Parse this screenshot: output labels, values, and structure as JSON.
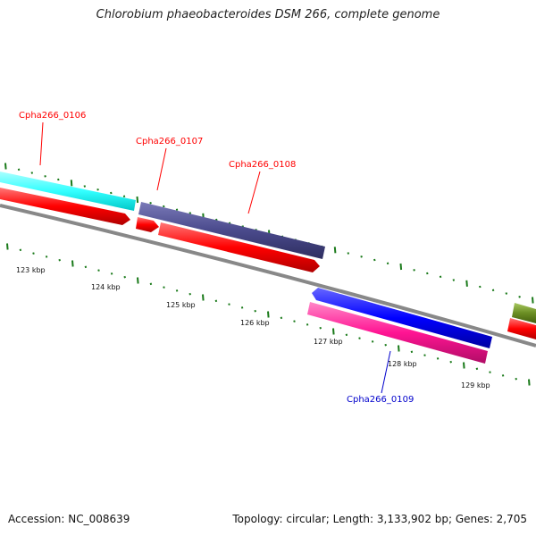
{
  "title": "Chlorobium phaeobacteroides DSM 266, complete genome",
  "footer": {
    "accession": "Accession: NC_008639",
    "summary": "Topology: circular; Length: 3,133,902 bp; Genes: 2,705"
  },
  "genes": [
    {
      "id": "Cpha266_0106",
      "label": "Cpha266_0106",
      "color": "#ff0000"
    },
    {
      "id": "Cpha266_0107",
      "label": "Cpha266_0107",
      "color": "#ff0000"
    },
    {
      "id": "Cpha266_0108",
      "label": "Cpha266_0108",
      "color": "#ff0000"
    },
    {
      "id": "Cpha266_0109",
      "label": "Cpha266_0109",
      "color": "#0000cc"
    }
  ],
  "kbp_labels": [
    "123 kbp",
    "124 kbp",
    "125 kbp",
    "126 kbp",
    "127 kbp",
    "128 kbp",
    "129 kbp"
  ],
  "colors": {
    "backbone": "#888888",
    "tick": "#1a7a1a",
    "cyan_feature": "#33ffff",
    "red_feature": "#ff0000",
    "slate_feature": "#4a4a8c",
    "blue_feature": "#0000ff",
    "pink_feature": "#ff1493",
    "olive_feature": "#6b8e23"
  }
}
